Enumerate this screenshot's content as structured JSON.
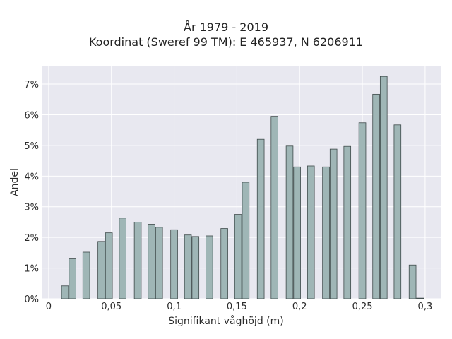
{
  "title_line1": "År 1979 - 2019",
  "title_line2": "Koordinat (Sweref 99 TM): E 465937, N 6206911",
  "chart_data": {
    "type": "bar",
    "xlabel": "Signifikant våghöjd (m)",
    "ylabel": "Andel",
    "xlim": [
      -0.005,
      0.313
    ],
    "ylim": [
      0,
      7.6
    ],
    "x_ticks": [
      0,
      0.05,
      0.1,
      0.15,
      0.2,
      0.25,
      0.3
    ],
    "x_tick_labels": [
      "0",
      "0,05",
      "0,1",
      "0,15",
      "0,2",
      "0,25",
      "0,3"
    ],
    "y_ticks": [
      0,
      1,
      2,
      3,
      4,
      5,
      6,
      7
    ],
    "y_tick_labels": [
      "0%",
      "1%",
      "2%",
      "3%",
      "4%",
      "5%",
      "6%",
      "7%"
    ],
    "bar_width": 0.0055,
    "bar_color": "#9fb6b6",
    "bar_edge": "#3e4a4a",
    "background": "#e8e8f0",
    "grid": true,
    "x": [
      0.013,
      0.019,
      0.03,
      0.042,
      0.048,
      0.059,
      0.071,
      0.082,
      0.088,
      0.1,
      0.111,
      0.117,
      0.128,
      0.14,
      0.151,
      0.157,
      0.169,
      0.18,
      0.192,
      0.198,
      0.209,
      0.221,
      0.227,
      0.238,
      0.25,
      0.261,
      0.267,
      0.278,
      0.29,
      0.296
    ],
    "values": [
      0.42,
      1.3,
      1.52,
      1.87,
      2.15,
      2.63,
      2.5,
      2.43,
      2.33,
      2.25,
      2.08,
      2.03,
      2.05,
      2.29,
      2.75,
      3.8,
      5.2,
      5.95,
      4.98,
      4.3,
      4.33,
      4.3,
      4.88,
      4.97,
      5.74,
      6.67,
      7.25,
      5.67,
      1.1,
      0.02
    ]
  }
}
